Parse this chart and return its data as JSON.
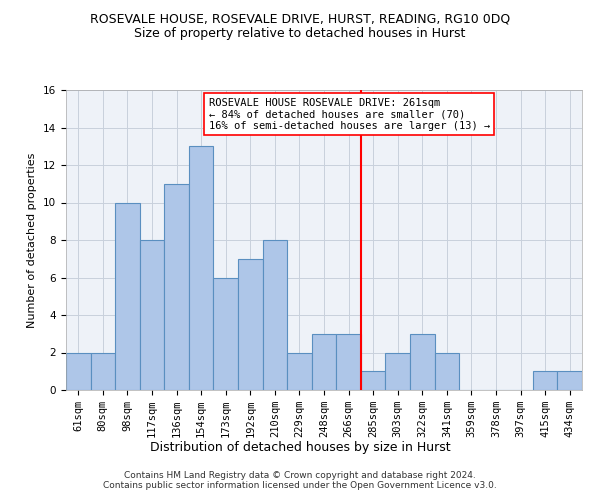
{
  "title": "ROSEVALE HOUSE, ROSEVALE DRIVE, HURST, READING, RG10 0DQ",
  "subtitle": "Size of property relative to detached houses in Hurst",
  "xlabel": "Distribution of detached houses by size in Hurst",
  "ylabel": "Number of detached properties",
  "categories": [
    "61sqm",
    "80sqm",
    "98sqm",
    "117sqm",
    "136sqm",
    "154sqm",
    "173sqm",
    "192sqm",
    "210sqm",
    "229sqm",
    "248sqm",
    "266sqm",
    "285sqm",
    "303sqm",
    "322sqm",
    "341sqm",
    "359sqm",
    "378sqm",
    "397sqm",
    "415sqm",
    "434sqm"
  ],
  "values": [
    2,
    2,
    10,
    8,
    11,
    13,
    6,
    7,
    8,
    2,
    3,
    3,
    1,
    2,
    3,
    2,
    0,
    0,
    0,
    1,
    1
  ],
  "bar_color": "#aec6e8",
  "bar_edge_color": "#5a8fc0",
  "grid_color": "#c8d0dc",
  "vline_x_index": 11.5,
  "vline_color": "red",
  "annotation_text": "ROSEVALE HOUSE ROSEVALE DRIVE: 261sqm\n← 84% of detached houses are smaller (70)\n16% of semi-detached houses are larger (13) →",
  "annotation_box_color": "white",
  "annotation_box_edge": "red",
  "ylim": [
    0,
    16
  ],
  "yticks": [
    0,
    2,
    4,
    6,
    8,
    10,
    12,
    14,
    16
  ],
  "footer": "Contains HM Land Registry data © Crown copyright and database right 2024.\nContains public sector information licensed under the Open Government Licence v3.0.",
  "bg_color": "#eef2f8",
  "title_fontsize": 9,
  "subtitle_fontsize": 9,
  "xlabel_fontsize": 9,
  "ylabel_fontsize": 8,
  "tick_fontsize": 7.5,
  "footer_fontsize": 6.5
}
